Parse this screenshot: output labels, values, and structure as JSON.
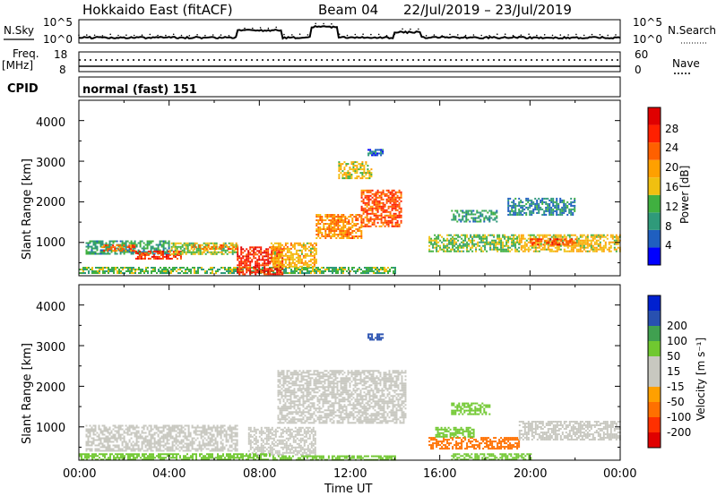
{
  "header": {
    "title": "Hokkaido East (fitACF)",
    "beam": "Beam 04",
    "date_range": "22/Jul/2019 – 23/Jul/2019"
  },
  "nsky_panel": {
    "left_label": "N.Sky",
    "left_top_tick": "10^5",
    "left_bottom_tick": "10^0",
    "right_label": "N.Search",
    "right_top_tick": "10^5",
    "right_bottom_tick": "10^0"
  },
  "freq_panel": {
    "left_label_line1": "Freq.",
    "left_label_line2": "[MHz]",
    "left_top_tick": "18",
    "left_bottom_tick": "8",
    "right_label": "Nave",
    "right_top_tick": "60",
    "right_bottom_tick": "0"
  },
  "cpid": {
    "label": "CPID",
    "mode": "normal (fast) 151"
  },
  "colors": {
    "power": [
      "#0000ff",
      "#1f5fc0",
      "#2f9a7a",
      "#40b040",
      "#f0c010",
      "#ffa000",
      "#ff6000",
      "#ff2000",
      "#e00000"
    ],
    "velocity": [
      "#e00000",
      "#ff3000",
      "#ff7000",
      "#ffa000",
      "#c8c8c0",
      "#c8c8c0",
      "#70c830",
      "#40a050",
      "#2850b0",
      "#0020d0"
    ]
  },
  "chart_data": [
    {
      "type": "heatmap",
      "name": "power",
      "ylabel": "Slant Range [km]",
      "ylim": [
        180,
        4500
      ],
      "y_ticks": [
        "1000",
        "2000",
        "3000",
        "4000"
      ],
      "colorbar_label": "Power [dB]",
      "colorbar_ticks": [
        "4",
        "8",
        "12",
        "16",
        "20",
        "24",
        "28"
      ],
      "colorbar_range": [
        0,
        32
      ],
      "regions": [
        {
          "t": [
            0.3,
            4.0
          ],
          "r": [
            700,
            1050
          ],
          "v": 10
        },
        {
          "t": [
            1.0,
            2.5
          ],
          "r": [
            800,
            950
          ],
          "v": 22
        },
        {
          "t": [
            2.5,
            4.5
          ],
          "r": [
            600,
            800
          ],
          "v": 26
        },
        {
          "t": [
            4.0,
            7.0
          ],
          "r": [
            700,
            1000
          ],
          "v": 14
        },
        {
          "t": [
            5.0,
            7.0
          ],
          "r": [
            850,
            950
          ],
          "v": 22
        },
        {
          "t": [
            0.0,
            14.0
          ],
          "r": [
            250,
            400
          ],
          "v": 12
        },
        {
          "t": [
            7.0,
            9.0
          ],
          "r": [
            200,
            900
          ],
          "v": 27
        },
        {
          "t": [
            8.5,
            10.5
          ],
          "r": [
            400,
            1000
          ],
          "v": 18
        },
        {
          "t": [
            10.5,
            12.5
          ],
          "r": [
            1100,
            1700
          ],
          "v": 21
        },
        {
          "t": [
            12.5,
            14.3
          ],
          "r": [
            1400,
            2300
          ],
          "v": 24
        },
        {
          "t": [
            11.5,
            13.0
          ],
          "r": [
            2600,
            3000
          ],
          "v": 16
        },
        {
          "t": [
            12.8,
            13.5
          ],
          "r": [
            3150,
            3300
          ],
          "v": 6
        },
        {
          "t": [
            15.5,
            19.5
          ],
          "r": [
            800,
            1200
          ],
          "v": 13
        },
        {
          "t": [
            16.5,
            18.5
          ],
          "r": [
            1500,
            1800
          ],
          "v": 10
        },
        {
          "t": [
            19.5,
            24.0
          ],
          "r": [
            800,
            1200
          ],
          "v": 17
        },
        {
          "t": [
            20.0,
            22.0
          ],
          "r": [
            950,
            1100
          ],
          "v": 25
        },
        {
          "t": [
            19.0,
            22.0
          ],
          "r": [
            1700,
            2100
          ],
          "v": 8
        }
      ]
    },
    {
      "type": "heatmap",
      "name": "velocity",
      "ylabel": "Slant Range [km]",
      "xlabel": "Time UT",
      "x_ticks": [
        "00:00",
        "04:00",
        "08:00",
        "12:00",
        "16:00",
        "20:00",
        "00:00"
      ],
      "xlim": [
        0,
        24
      ],
      "ylim": [
        180,
        4500
      ],
      "y_ticks": [
        "1000",
        "2000",
        "3000",
        "4000"
      ],
      "colorbar_label": "Velocity [m s⁻¹]",
      "colorbar_ticks": [
        "-200",
        "-100",
        "-50",
        "-15",
        "15",
        "50",
        "100",
        "200"
      ],
      "regions": [
        {
          "t": [
            0.3,
            7.0
          ],
          "r": [
            400,
            1050
          ],
          "v": 0
        },
        {
          "t": [
            7.5,
            10.5
          ],
          "r": [
            300,
            1000
          ],
          "v": 0
        },
        {
          "t": [
            8.8,
            14.5
          ],
          "r": [
            1100,
            2400
          ],
          "v": 0
        },
        {
          "t": [
            0.0,
            8.5
          ],
          "r": [
            180,
            350
          ],
          "v": 30
        },
        {
          "t": [
            8.5,
            14.0
          ],
          "r": [
            200,
            300
          ],
          "v": 30
        },
        {
          "t": [
            12.8,
            13.5
          ],
          "r": [
            3150,
            3300
          ],
          "v": 180
        },
        {
          "t": [
            15.5,
            19.5
          ],
          "r": [
            450,
            750
          ],
          "v": -70
        },
        {
          "t": [
            15.8,
            17.5
          ],
          "r": [
            750,
            1000
          ],
          "v": 20
        },
        {
          "t": [
            16.5,
            18.2
          ],
          "r": [
            1300,
            1600
          ],
          "v": 40
        },
        {
          "t": [
            16.5,
            20.0
          ],
          "r": [
            200,
            350
          ],
          "v": 20
        },
        {
          "t": [
            19.5,
            24.0
          ],
          "r": [
            700,
            1150
          ],
          "v": 0
        }
      ]
    }
  ]
}
